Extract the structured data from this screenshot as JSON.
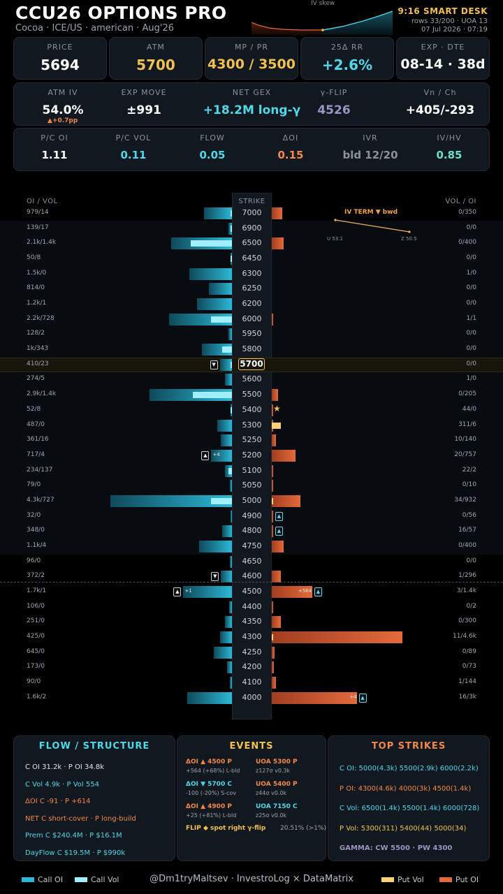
{
  "header": {
    "title": "CCU26 OPTIONS PRO",
    "subtitle": "Cocoa · ICE/US · american · Aug'26",
    "skew_label": "IV skew",
    "desk": "9:16 SMART DESK",
    "rows": "rows 33/200 · UOA 13",
    "datetime": "07 Jul 2026 · 07:19"
  },
  "stats_row1": [
    {
      "label": "PRICE",
      "value": "5694",
      "color": "#ffffff"
    },
    {
      "label": "ATM",
      "value": "5700",
      "color": "#f2c14e"
    },
    {
      "label": "MP / PR",
      "value": "4300 / 3500",
      "color": "#f2c14e"
    },
    {
      "label": "25Δ RR",
      "value": "+2.6%",
      "color": "#4fd8e8"
    },
    {
      "label": "EXP · DTE",
      "value": "08-14 · 38d",
      "color": "#ffffff"
    }
  ],
  "stats_row2": [
    {
      "label": "ATM IV",
      "value": "54.0%",
      "color": "#ffffff"
    },
    {
      "label": "EXP MOVE",
      "value": "±991",
      "color": "#ffffff"
    },
    {
      "label": "NET GEX",
      "value": "+18.2M long-γ",
      "color": "#4fd8e8"
    },
    {
      "label": "γ-FLIP",
      "value": "4526",
      "color": "#9a95c2"
    },
    {
      "label": "Vn / Ch",
      "value": "+405/-293",
      "color": "#ffffff"
    }
  ],
  "atm_iv_delta": "▲+0.7pp",
  "stats_row3": [
    {
      "label": "P/C OI",
      "value": "1.11",
      "color": "#ffffff"
    },
    {
      "label": "P/C VOL",
      "value": "0.11",
      "color": "#4fd8e8"
    },
    {
      "label": "FLOW",
      "value": "0.05",
      "color": "#4fd8e8"
    },
    {
      "label": "ΔOI",
      "value": "0.15",
      "color": "#f2884a"
    },
    {
      "label": "IVR",
      "value": "bld 12/20",
      "color": "#8a939c"
    },
    {
      "label": "IV/HV",
      "value": "0.85",
      "color": "#6fe0c8"
    }
  ],
  "ladder": {
    "left_header": "OI / VOL",
    "strike_header": "STRIKE",
    "right_header": "VOL / OI",
    "term_label": "IV TERM  ▼ bwd",
    "term_u": "U 53.1",
    "term_z": "Z 50.5",
    "rows": [
      {
        "strike": "7000",
        "call": "979/14",
        "put": "0/350",
        "c": 0.23,
        "cv": 0.01,
        "p": 0.08,
        "pv": 0
      },
      {
        "strike": "6900",
        "call": "139/17",
        "put": "0/0",
        "c": 0.03,
        "cv": 0.01,
        "p": 0,
        "pv": 0
      },
      {
        "strike": "6500",
        "call": "2.1k/1.4k",
        "put": "0/400",
        "c": 0.5,
        "cv": 0.34,
        "p": 0.09,
        "pv": 0
      },
      {
        "strike": "6450",
        "call": "50/8",
        "put": "0/0",
        "c": 0.01,
        "cv": 0.005,
        "p": 0,
        "pv": 0
      },
      {
        "strike": "6300",
        "call": "1.5k/0",
        "put": "1/0",
        "c": 0.35,
        "cv": 0,
        "p": 0,
        "pv": 0
      },
      {
        "strike": "6250",
        "call": "814/0",
        "put": "0/0",
        "c": 0.19,
        "cv": 0,
        "p": 0,
        "pv": 0
      },
      {
        "strike": "6200",
        "call": "1.2k/1",
        "put": "0/0",
        "c": 0.29,
        "cv": 0,
        "p": 0,
        "pv": 0
      },
      {
        "strike": "6000",
        "call": "2.2k/728",
        "put": "1/1",
        "c": 0.52,
        "cv": 0.17,
        "p": 0.005,
        "pv": 0
      },
      {
        "strike": "5950",
        "call": "128/2",
        "put": "0/0",
        "c": 0.03,
        "cv": 0,
        "p": 0,
        "pv": 0
      },
      {
        "strike": "5800",
        "call": "1k/343",
        "put": "0/0",
        "c": 0.25,
        "cv": 0.08,
        "p": 0,
        "pv": 0
      },
      {
        "strike": "5700",
        "call": "410/23",
        "put": "0/0",
        "c": 0.1,
        "cv": 0.01,
        "p": 0,
        "pv": 0,
        "atm": true,
        "mkL": "▼"
      },
      {
        "strike": "5600",
        "call": "274/5",
        "put": "1/0",
        "c": 0.06,
        "cv": 0,
        "p": 0,
        "pv": 0
      },
      {
        "strike": "5500",
        "call": "2.9k/1.4k",
        "put": "0/205",
        "c": 0.68,
        "cv": 0.32,
        "p": 0.05,
        "pv": 0
      },
      {
        "strike": "5400",
        "call": "52/8",
        "put": "44/0",
        "c": 0.01,
        "cv": 0.005,
        "p": 0.01,
        "pv": 0,
        "star": true
      },
      {
        "strike": "5300",
        "call": "487/0",
        "put": "311/6",
        "c": 0.12,
        "cv": 0,
        "p": 0.001,
        "pv": 0.07
      },
      {
        "strike": "5250",
        "call": "361/16",
        "put": "10/140",
        "c": 0.09,
        "cv": 0,
        "p": 0.03,
        "pv": 0
      },
      {
        "strike": "5200",
        "call": "717/4",
        "put": "20/757",
        "c": 0.17,
        "cv": 0,
        "p": 0.18,
        "pv": 0,
        "mkL": "▲",
        "tagL": "+4"
      },
      {
        "strike": "5100",
        "call": "234/137",
        "put": "22/2",
        "c": 0.06,
        "cv": 0.03,
        "p": 0.005,
        "pv": 0
      },
      {
        "strike": "5050",
        "call": "79/0",
        "put": "0/10",
        "c": 0.02,
        "cv": 0,
        "p": 0.002,
        "pv": 0
      },
      {
        "strike": "5000",
        "call": "4.3k/727",
        "put": "34/932",
        "c": 1.0,
        "cv": 0.17,
        "p": 0.22,
        "pv": 0.01
      },
      {
        "strike": "4900",
        "call": "32/0",
        "put": "0/56",
        "c": 0.01,
        "cv": 0,
        "p": 0.01,
        "pv": 0,
        "mkR": "▲"
      },
      {
        "strike": "4800",
        "call": "348/0",
        "put": "16/57",
        "c": 0.08,
        "cv": 0,
        "p": 0.01,
        "pv": 0,
        "mkR": "▲"
      },
      {
        "strike": "4750",
        "call": "1.1k/4",
        "put": "0/400",
        "c": 0.27,
        "cv": 0,
        "p": 0.09,
        "pv": 0
      },
      {
        "strike": "4650",
        "call": "96/0",
        "put": "0/0",
        "c": 0.02,
        "cv": 0,
        "p": 0,
        "pv": 0
      },
      {
        "strike": "4600",
        "call": "372/2",
        "put": "1/296",
        "c": 0.09,
        "cv": 0,
        "p": 0.07,
        "pv": 0,
        "mkL": "▼"
      },
      {
        "strike": "4500",
        "call": "1.7k/1",
        "put": "3/1.4k",
        "c": 0.4,
        "cv": 0,
        "p": 0.31,
        "pv": 0,
        "mkL": "▲",
        "tagL": "+1",
        "mkR": "▲",
        "tagR": "+564"
      },
      {
        "strike": "4400",
        "call": "106/0",
        "put": "0/2",
        "c": 0.025,
        "cv": 0,
        "p": 0.001,
        "pv": 0
      },
      {
        "strike": "4350",
        "call": "251/0",
        "put": "0/300",
        "c": 0.06,
        "cv": 0,
        "p": 0.07,
        "pv": 0
      },
      {
        "strike": "4300",
        "call": "425/0",
        "put": "11/4.6k",
        "c": 0.1,
        "cv": 0,
        "p": 1.0,
        "pv": 0.005
      },
      {
        "strike": "4250",
        "call": "645/0",
        "put": "0/89",
        "c": 0.15,
        "cv": 0,
        "p": 0.02,
        "pv": 0
      },
      {
        "strike": "4200",
        "call": "173/0",
        "put": "0/73",
        "c": 0.04,
        "cv": 0,
        "p": 0.016,
        "pv": 0
      },
      {
        "strike": "4100",
        "call": "90/0",
        "put": "1/144",
        "c": 0.02,
        "cv": 0,
        "p": 0.03,
        "pv": 0
      },
      {
        "strike": "4000",
        "call": "1.6k/2",
        "put": "16/3k",
        "c": 0.37,
        "cv": 0,
        "p": 0.65,
        "pv": 0,
        "mkR": "▲",
        "tagR": "+4"
      }
    ]
  },
  "flow_panel": {
    "title": "FLOW / STRUCTURE",
    "lines": [
      {
        "text": "C OI 31.2k  ·  P OI 34.8k",
        "color": "#e6e6e6"
      },
      {
        "text": "C Vol 4.9k  ·  P Vol 554",
        "color": "#4fd8e8"
      },
      {
        "text": "ΔOI C -91  ·  P +614",
        "color": "#f2884a"
      },
      {
        "text": "NET  C short-cover  ·  P long-build",
        "color": "#f2884a"
      },
      {
        "text": "Prem  C $240.4M   ·   P $16.1M",
        "color": "#4fd8e8"
      },
      {
        "text": "DayFlow  C $19.5M   ·   P $990k",
        "color": "#4fd8e8"
      }
    ]
  },
  "events_panel": {
    "title": "EVENTS",
    "left": [
      {
        "head": "ΔOI ▲ 4500 P",
        "sub": "+564 (+68%)  L-bld",
        "color": "#f2884a"
      },
      {
        "head": "ΔOI ▼ 5700 C",
        "sub": "-100 (-20%)  S-cov",
        "color": "#4fd8e8"
      },
      {
        "head": "ΔOI ▲ 4900 P",
        "sub": "+25 (+81%)  L-bld",
        "color": "#f2884a"
      }
    ],
    "right": [
      {
        "head": "UOA 5300 P",
        "sub": "z127σ v0.3k",
        "color": "#f2884a"
      },
      {
        "head": "UOA 5400 P",
        "sub": "z44σ v0.0k",
        "color": "#f2884a"
      },
      {
        "head": "UOA 7150 C",
        "sub": "z25σ v0.0k",
        "color": "#4fd8e8"
      }
    ],
    "flip": "FLIP ◆ spot right γ-flip",
    "flip_pct": "20.51% (>1%)"
  },
  "strikes_panel": {
    "title": "TOP STRIKES",
    "lines": [
      {
        "text": "C OI: 5000(4.3k)  5500(2.9k)  6000(2.2k)",
        "color": "#4fd8e8"
      },
      {
        "text": "P OI: 4300(4.6k)  4000(3k)  4500(1.4k)",
        "color": "#f2884a"
      },
      {
        "text": "C Vol: 6500(1.4k)  5500(1.4k)  6000(728)",
        "color": "#4fd8e8"
      },
      {
        "text": "P Vol: 5300(311)  5400(44)  5000(34)",
        "color": "#f2c14e"
      },
      {
        "text": "GAMMA: CW 5500 · PW 4300",
        "color": "#9a95c2"
      }
    ]
  },
  "legend": {
    "call_oi": "Call OI",
    "call_vol": "Call Vol",
    "credit": "@Dm1tryMaltsev  ·  InvestroLog × DataMatrix",
    "put_vol": "Put Vol",
    "put_oi": "Put OI"
  }
}
